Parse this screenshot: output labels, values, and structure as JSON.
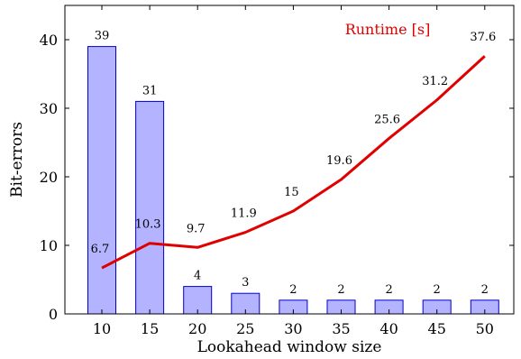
{
  "chart_data": {
    "type": "bar",
    "title": "",
    "xlabel": "Lookahead window size",
    "ylabel": "Bit-errors",
    "ylim": [
      0,
      45
    ],
    "yticks": [
      0,
      10,
      20,
      30,
      40
    ],
    "categories": [
      "10",
      "15",
      "20",
      "25",
      "30",
      "35",
      "40",
      "45",
      "50"
    ],
    "grid": false,
    "series": [
      {
        "type": "bar",
        "values": [
          39,
          31,
          4,
          3,
          2,
          2,
          2,
          2,
          2
        ],
        "labels": [
          "39",
          "31",
          "4",
          "3",
          "2",
          "2",
          "2",
          "2",
          "2"
        ],
        "color": "#b3b3ff",
        "stroke": "#0000cc"
      },
      {
        "name": "Runtime [s]",
        "type": "line",
        "values": [
          6.7,
          10.3,
          9.7,
          11.9,
          15,
          19.6,
          25.6,
          31.2,
          37.6
        ],
        "labels": [
          "6.7",
          "10.3",
          "9.7",
          "11.9",
          "15",
          "19.6",
          "25.6",
          "31.2",
          "37.6"
        ],
        "color": "#e00000"
      }
    ]
  }
}
